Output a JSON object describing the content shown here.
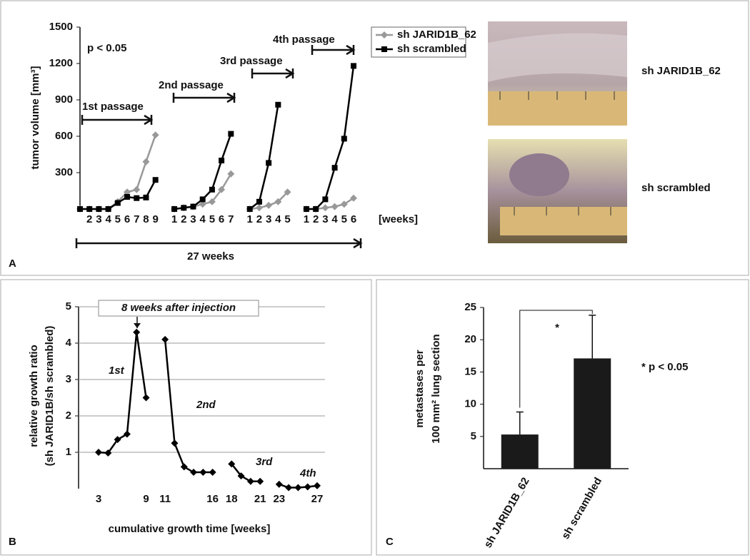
{
  "photo_labels": [
    "sh JARID1B_62",
    "sh scrambled"
  ],
  "chart_data": [
    {
      "type": "line",
      "panel": "A",
      "ylabel": [
        "tumor volume [mm³]"
      ],
      "xlabel": "[weeks]",
      "categories": [
        null,
        "2",
        "3",
        "4",
        "5",
        "6",
        "7",
        "8",
        "9",
        null,
        "1",
        "2",
        "3",
        "4",
        "5",
        "6",
        "7",
        null,
        "1",
        "2",
        "3",
        "4",
        "5",
        null,
        "1",
        "2",
        "3",
        "4",
        "5",
        "6"
      ],
      "series": [
        {
          "name": "sh JARID1B_62",
          "color": "#999999",
          "marker": "diamond",
          "values": [
            0,
            0,
            0,
            0,
            60,
            140,
            160,
            390,
            610,
            null,
            0,
            10,
            20,
            40,
            60,
            160,
            290,
            null,
            0,
            10,
            30,
            60,
            140,
            null,
            0,
            0,
            10,
            20,
            40,
            90
          ]
        },
        {
          "name": "sh scrambled",
          "color": "#000000",
          "marker": "square",
          "values": [
            0,
            0,
            0,
            0,
            50,
            100,
            90,
            95,
            240,
            null,
            0,
            10,
            20,
            80,
            160,
            400,
            620,
            null,
            0,
            60,
            380,
            860,
            null,
            null,
            0,
            0,
            80,
            340,
            580,
            1180
          ]
        }
      ],
      "ylim": [
        0,
        1500
      ],
      "yticks": [
        300,
        600,
        900,
        1200,
        1500
      ],
      "grid": false,
      "legend": "right",
      "annotations": [
        "p < 0.05",
        "1st passage",
        "2nd passage",
        "3rd passage",
        "4th passage",
        "27 weeks"
      ]
    },
    {
      "type": "line",
      "panel": "B",
      "ylabel": [
        "relative growth ratio",
        "(sh JARID1B/sh scrambled)"
      ],
      "xlabel": "cumulative growth time [weeks]",
      "categories": [
        "3",
        null,
        null,
        null,
        null,
        "9",
        null,
        "11",
        null,
        null,
        null,
        null,
        "16",
        null,
        "18",
        null,
        null,
        "21",
        null,
        "23",
        null,
        null,
        null,
        "27"
      ],
      "series": [
        {
          "name": null,
          "color": "#000000",
          "marker": "diamond",
          "values": [
            1.0,
            0.98,
            1.35,
            1.5,
            4.3,
            2.5,
            null,
            4.1,
            1.25,
            0.6,
            0.45,
            0.45,
            0.45,
            null,
            0.68,
            0.35,
            0.2,
            0.2,
            null,
            0.12,
            0.03,
            0.03,
            0.05,
            0.08
          ]
        }
      ],
      "ylim": [
        0,
        5
      ],
      "yticks": [
        1,
        2,
        3,
        4,
        5
      ],
      "grid": true,
      "annotations": [
        "8 weeks after injection",
        "1st",
        "2nd",
        "3rd",
        "4th"
      ]
    },
    {
      "type": "bar",
      "panel": "C",
      "ylabel": [
        "metastases per",
        "100 mm² lung section"
      ],
      "categories": [
        "sh JARID1B_62",
        "sh scrambled"
      ],
      "values": [
        5.3,
        17.1
      ],
      "errors": [
        3.5,
        6.7
      ],
      "color": "#1a1a1a",
      "ylim": [
        0,
        25
      ],
      "yticks": [
        5,
        10,
        15,
        20,
        25
      ],
      "grid": false,
      "annotations": [
        "*",
        "* p < 0.05"
      ]
    }
  ]
}
